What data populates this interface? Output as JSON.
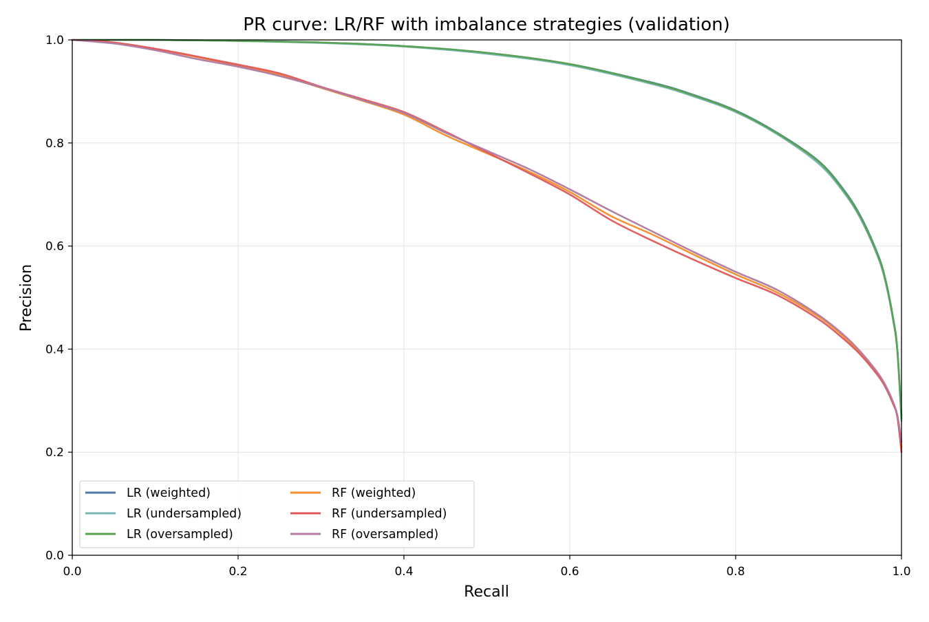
{
  "chart_data": {
    "type": "line",
    "title": "PR curve: LR/RF with imbalance strategies (validation)",
    "xlabel": "Recall",
    "ylabel": "Precision",
    "xlim": [
      0.0,
      1.0
    ],
    "ylim": [
      0.0,
      1.0
    ],
    "xticks": [
      "0.0",
      "0.2",
      "0.4",
      "0.6",
      "0.8",
      "1.0"
    ],
    "yticks": [
      "0.0",
      "0.2",
      "0.4",
      "0.6",
      "0.8",
      "1.0"
    ],
    "grid": true,
    "legend_position": "lower-left",
    "series": [
      {
        "name": "LR (weighted)",
        "color": "#4e79a7",
        "x": [
          0.0,
          0.05,
          0.1,
          0.2,
          0.3,
          0.4,
          0.5,
          0.6,
          0.7,
          0.75,
          0.8,
          0.85,
          0.9,
          0.93,
          0.95,
          0.97,
          0.98,
          0.99,
          0.995,
          1.0
        ],
        "y": [
          1.0,
          1.0,
          1.0,
          0.998,
          0.995,
          0.988,
          0.975,
          0.953,
          0.917,
          0.893,
          0.863,
          0.82,
          0.765,
          0.71,
          0.66,
          0.59,
          0.54,
          0.46,
          0.4,
          0.27
        ]
      },
      {
        "name": "LR (undersampled)",
        "color": "#76b7b2",
        "x": [
          0.0,
          0.05,
          0.1,
          0.2,
          0.3,
          0.4,
          0.5,
          0.6,
          0.7,
          0.75,
          0.8,
          0.85,
          0.9,
          0.93,
          0.95,
          0.97,
          0.98,
          0.99,
          0.995,
          1.0
        ],
        "y": [
          1.0,
          1.0,
          1.0,
          0.998,
          0.994,
          0.987,
          0.973,
          0.951,
          0.914,
          0.89,
          0.86,
          0.817,
          0.76,
          0.705,
          0.655,
          0.585,
          0.535,
          0.455,
          0.395,
          0.26
        ]
      },
      {
        "name": "LR (oversampled)",
        "color": "#59a14f",
        "x": [
          0.0,
          0.05,
          0.1,
          0.2,
          0.3,
          0.4,
          0.5,
          0.6,
          0.7,
          0.75,
          0.8,
          0.85,
          0.9,
          0.93,
          0.95,
          0.97,
          0.98,
          0.99,
          0.995,
          1.0
        ],
        "y": [
          1.0,
          1.0,
          1.0,
          0.998,
          0.995,
          0.988,
          0.975,
          0.953,
          0.916,
          0.892,
          0.862,
          0.819,
          0.764,
          0.708,
          0.658,
          0.588,
          0.538,
          0.458,
          0.398,
          0.265
        ]
      },
      {
        "name": "RF (weighted)",
        "color": "#f28e2b",
        "x": [
          0.0,
          0.05,
          0.1,
          0.15,
          0.2,
          0.25,
          0.3,
          0.35,
          0.4,
          0.45,
          0.5,
          0.55,
          0.6,
          0.65,
          0.7,
          0.75,
          0.8,
          0.85,
          0.9,
          0.93,
          0.95,
          0.97,
          0.98,
          0.99,
          0.995,
          1.0
        ],
        "y": [
          1.0,
          0.995,
          0.982,
          0.967,
          0.95,
          0.932,
          0.907,
          0.882,
          0.855,
          0.815,
          0.78,
          0.745,
          0.705,
          0.658,
          0.622,
          0.583,
          0.545,
          0.51,
          0.463,
          0.425,
          0.393,
          0.355,
          0.33,
          0.295,
          0.27,
          0.21
        ]
      },
      {
        "name": "RF (undersampled)",
        "color": "#e15759",
        "x": [
          0.0,
          0.05,
          0.1,
          0.15,
          0.2,
          0.25,
          0.3,
          0.35,
          0.4,
          0.45,
          0.5,
          0.55,
          0.6,
          0.65,
          0.7,
          0.75,
          0.8,
          0.85,
          0.9,
          0.93,
          0.95,
          0.97,
          0.98,
          0.99,
          0.995,
          1.0
        ],
        "y": [
          1.0,
          0.995,
          0.983,
          0.968,
          0.952,
          0.935,
          0.909,
          0.885,
          0.86,
          0.822,
          0.782,
          0.742,
          0.7,
          0.65,
          0.61,
          0.573,
          0.538,
          0.505,
          0.458,
          0.42,
          0.39,
          0.352,
          0.328,
          0.293,
          0.268,
          0.2
        ]
      },
      {
        "name": "RF (oversampled)",
        "color": "#b07aa1",
        "x": [
          0.0,
          0.05,
          0.1,
          0.15,
          0.2,
          0.25,
          0.3,
          0.35,
          0.4,
          0.45,
          0.5,
          0.55,
          0.6,
          0.65,
          0.7,
          0.75,
          0.8,
          0.85,
          0.9,
          0.93,
          0.95,
          0.97,
          0.98,
          0.99,
          0.995,
          1.0
        ],
        "y": [
          1.0,
          0.993,
          0.98,
          0.963,
          0.948,
          0.93,
          0.908,
          0.883,
          0.858,
          0.82,
          0.785,
          0.75,
          0.71,
          0.668,
          0.628,
          0.588,
          0.55,
          0.515,
          0.466,
          0.428,
          0.396,
          0.357,
          0.332,
          0.297,
          0.272,
          0.22
        ]
      }
    ]
  }
}
